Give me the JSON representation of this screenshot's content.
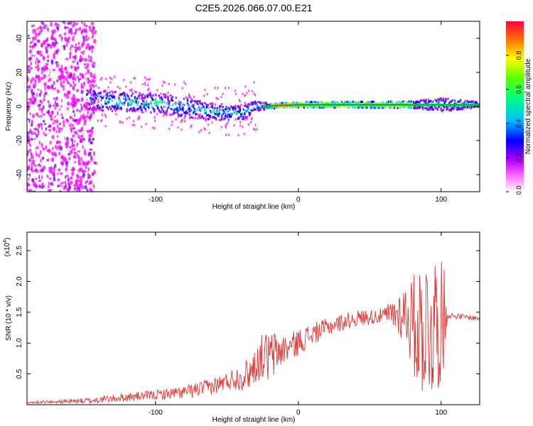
{
  "title": "C2E5.2026.066.07.00.E21",
  "chart_data": [
    {
      "type": "heatmap",
      "name": "spectrogram",
      "xlabel": "Height of straight line (km)",
      "ylabel": "Frequency (Hz)",
      "xlim": [
        -190,
        127
      ],
      "ylim": [
        -50,
        50
      ],
      "xticks": [
        -100,
        0,
        100
      ],
      "yticks": [
        -40,
        -20,
        0,
        20,
        40
      ],
      "colorbar": {
        "label": "Normalized spectral amplitude",
        "range": [
          0,
          1
        ],
        "ticks": [
          0,
          0.2,
          0.4,
          0.6,
          0.8
        ],
        "tick_labels": [
          "0.0",
          "0.2",
          "0.4",
          "0.6",
          "0.8"
        ],
        "colormap": [
          "#ffffff",
          "#ff00ff",
          "#8000ff",
          "#0000ff",
          "#00c0ff",
          "#00ff80",
          "#80ff00",
          "#ffff00",
          "#ff8000",
          "#ff0000"
        ]
      },
      "features": {
        "noise_region_x": [
          -190,
          -150
        ],
        "band_start_x": -148,
        "band_end_x": 127,
        "band_center_hz": [
          [
            -148,
            4
          ],
          [
            -100,
            2
          ],
          [
            -60,
            -3
          ],
          [
            -40,
            -4
          ],
          [
            -30,
            0
          ],
          [
            0,
            1
          ],
          [
            50,
            1
          ],
          [
            100,
            1
          ],
          [
            127,
            1
          ]
        ],
        "band_halfwidth_hz": [
          [
            -148,
            6
          ],
          [
            -80,
            6
          ],
          [
            -35,
            4
          ],
          [
            -20,
            1.5
          ],
          [
            80,
            2
          ],
          [
            100,
            4
          ],
          [
            127,
            1.5
          ]
        ]
      }
    },
    {
      "type": "line",
      "name": "snr",
      "xlabel": "Height of straight line (km)",
      "ylabel": "SNR (10 * v/v)",
      "scale_note": "(x10",
      "scale_exp": "4",
      "xlim": [
        -190,
        127
      ],
      "ylim": [
        0,
        2.8
      ],
      "xticks": [
        -100,
        0,
        100
      ],
      "yticks": [
        0.5,
        1.0,
        1.5,
        2.0,
        2.5
      ],
      "ytick_labels": [
        "0.5",
        "1.0",
        "1.5",
        "2.0",
        "2.5"
      ],
      "color": "#e83030",
      "trend": [
        [
          -190,
          0.03
        ],
        [
          -150,
          0.06
        ],
        [
          -120,
          0.12
        ],
        [
          -80,
          0.2
        ],
        [
          -60,
          0.3
        ],
        [
          -35,
          0.5
        ],
        [
          -25,
          0.8
        ],
        [
          -20,
          0.75
        ],
        [
          -15,
          0.85
        ],
        [
          -5,
          0.95
        ],
        [
          10,
          1.15
        ],
        [
          25,
          1.3
        ],
        [
          40,
          1.4
        ],
        [
          60,
          1.45
        ],
        [
          75,
          1.5
        ],
        [
          82,
          1.25
        ],
        [
          100,
          1.35
        ],
        [
          105,
          1.45
        ],
        [
          127,
          1.4
        ]
      ],
      "noise_amplitude": [
        [
          -190,
          0.02
        ],
        [
          -150,
          0.05
        ],
        [
          -100,
          0.08
        ],
        [
          -50,
          0.15
        ],
        [
          -30,
          0.3
        ],
        [
          -20,
          0.45
        ],
        [
          -10,
          0.25
        ],
        [
          20,
          0.15
        ],
        [
          60,
          0.12
        ],
        [
          75,
          0.5
        ],
        [
          85,
          1.1
        ],
        [
          95,
          1.3
        ],
        [
          103,
          0.8
        ],
        [
          104,
          0.05
        ],
        [
          127,
          0.04
        ]
      ]
    }
  ]
}
